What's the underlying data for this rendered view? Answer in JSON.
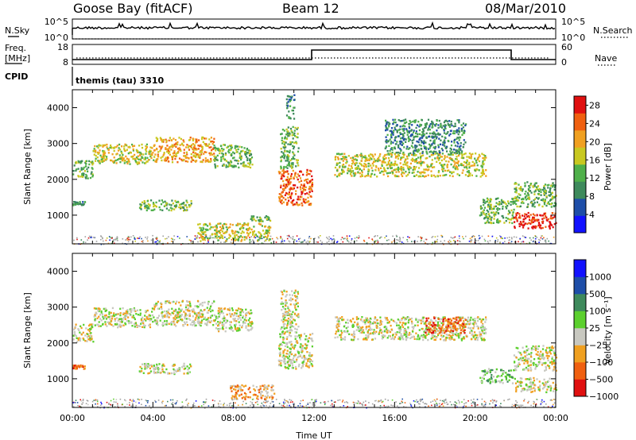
{
  "header": {
    "station": "Goose Bay (fitACF)",
    "beam": "Beam 12",
    "date": "08/Mar/2010"
  },
  "panels": {
    "nsky_label": "N.Sky",
    "nsky_ticks": [
      "10^5",
      "10^0"
    ],
    "nsearch_label": "N.Search",
    "nsearch_ticks": [
      "10^5",
      "10^0"
    ],
    "freq_label": "Freq.",
    "freq_unit": "[MHz]",
    "freq_ticks": [
      "18",
      "8"
    ],
    "nave_label": "Nave",
    "nave_ticks": [
      "60",
      "0"
    ],
    "cpid_label": "CPID",
    "cpid_value": "themis (tau) 3310"
  },
  "colors": {
    "power": [
      "#1212ff",
      "#1e4ea8",
      "#3e8a5c",
      "#4fb04a",
      "#c8c820",
      "#f0a020",
      "#f06010",
      "#e01010"
    ],
    "velocity": [
      "#1212ff",
      "#1e4ea8",
      "#3e8a5c",
      "#5cd02e",
      "#c8c8c0",
      "#f0a020",
      "#f06010",
      "#e01010"
    ],
    "ground": "#a0a0a0",
    "axis": "#000000"
  },
  "chart_data": [
    {
      "type": "heatmap",
      "name_key": "power",
      "xlabel": "",
      "ylabel": "Slant Range [km]",
      "xlim": [
        0,
        24
      ],
      "ylim": [
        200,
        4500
      ],
      "yticks": [
        "1000",
        "2000",
        "3000",
        "4000"
      ],
      "colorbar": {
        "label": "Power [dB]",
        "ticks": [
          "4",
          "8",
          "12",
          "16",
          "20",
          "24",
          "28"
        ],
        "range": [
          0,
          30
        ]
      },
      "regions": [
        {
          "t0": 0.0,
          "t1": 1.0,
          "r0": 2050,
          "r1": 2550,
          "level": 3
        },
        {
          "t0": 1.0,
          "t1": 4.0,
          "r0": 2450,
          "r1": 3000,
          "level": 4
        },
        {
          "t0": 4.0,
          "t1": 7.0,
          "r0": 2500,
          "r1": 3200,
          "level": 5
        },
        {
          "t0": 7.0,
          "t1": 8.9,
          "r0": 2350,
          "r1": 3000,
          "level": 3
        },
        {
          "t0": 0.0,
          "t1": 0.6,
          "r0": 1300,
          "r1": 1400,
          "level": 2
        },
        {
          "t0": 3.3,
          "t1": 5.9,
          "r0": 1150,
          "r1": 1450,
          "level": 3
        },
        {
          "t0": 6.2,
          "t1": 9.8,
          "r0": 300,
          "r1": 800,
          "level": 4
        },
        {
          "t0": 8.8,
          "t1": 9.8,
          "r0": 850,
          "r1": 1000,
          "level": 3
        },
        {
          "t0": 10.2,
          "t1": 11.9,
          "r0": 1300,
          "r1": 2300,
          "level": 6
        },
        {
          "t0": 10.3,
          "t1": 11.2,
          "r0": 2300,
          "r1": 3500,
          "level": 3
        },
        {
          "t0": 10.6,
          "t1": 11.0,
          "r0": 3700,
          "r1": 4400,
          "level": 2
        },
        {
          "t0": 13.0,
          "t1": 20.5,
          "r0": 2100,
          "r1": 2750,
          "level": 4
        },
        {
          "t0": 15.5,
          "t1": 19.5,
          "r0": 2750,
          "r1": 3700,
          "level": 2
        },
        {
          "t0": 20.2,
          "t1": 21.9,
          "r0": 800,
          "r1": 1500,
          "level": 3
        },
        {
          "t0": 21.9,
          "t1": 24.0,
          "r0": 650,
          "r1": 1100,
          "level": 7
        },
        {
          "t0": 21.9,
          "t1": 24.0,
          "r0": 1250,
          "r1": 1950,
          "level": 3
        }
      ]
    },
    {
      "type": "heatmap",
      "name_key": "velocity",
      "xlabel": "Time UT",
      "ylabel": "Slant Range [km]",
      "xlim": [
        0,
        24
      ],
      "ylim": [
        200,
        4500
      ],
      "xticks": [
        "00:00",
        "04:00",
        "08:00",
        "12:00",
        "16:00",
        "20:00",
        "00:00"
      ],
      "yticks": [
        "1000",
        "2000",
        "3000",
        "4000"
      ],
      "colorbar": {
        "label": "Velocity [m s⁻¹]",
        "ticks": [
          "1000",
          "500",
          "100",
          "25",
          "−25",
          "−100",
          "−500",
          "−1000"
        ]
      },
      "regions": [
        {
          "t0": 0.0,
          "t1": 1.0,
          "r0": 2050,
          "r1": 2550,
          "level": 4
        },
        {
          "t0": 1.0,
          "t1": 4.0,
          "r0": 2450,
          "r1": 3000,
          "level": 4
        },
        {
          "t0": 4.0,
          "t1": 7.0,
          "r0": 2500,
          "r1": 3200,
          "level": 4
        },
        {
          "t0": 7.0,
          "t1": 8.9,
          "r0": 2350,
          "r1": 3000,
          "level": 4
        },
        {
          "t0": 0.0,
          "t1": 0.6,
          "r0": 1300,
          "r1": 1400,
          "level": 6
        },
        {
          "t0": 3.3,
          "t1": 5.9,
          "r0": 1150,
          "r1": 1450,
          "level": 4
        },
        {
          "t0": 7.8,
          "t1": 10.0,
          "r0": 450,
          "r1": 850,
          "level": 5
        },
        {
          "t0": 10.2,
          "t1": 11.9,
          "r0": 1300,
          "r1": 2300,
          "level": 4
        },
        {
          "t0": 10.3,
          "t1": 11.2,
          "r0": 2300,
          "r1": 3500,
          "level": 4
        },
        {
          "t0": 13.0,
          "t1": 20.5,
          "r0": 2100,
          "r1": 2750,
          "level": 4
        },
        {
          "t0": 17.5,
          "t1": 19.5,
          "r0": 2300,
          "r1": 2750,
          "level": 6
        },
        {
          "t0": 20.2,
          "t1": 21.9,
          "r0": 900,
          "r1": 1300,
          "level": 3
        },
        {
          "t0": 21.9,
          "t1": 24.0,
          "r0": 650,
          "r1": 1050,
          "level": 4
        },
        {
          "t0": 21.9,
          "t1": 24.0,
          "r0": 1250,
          "r1": 1950,
          "level": 4
        }
      ]
    }
  ]
}
